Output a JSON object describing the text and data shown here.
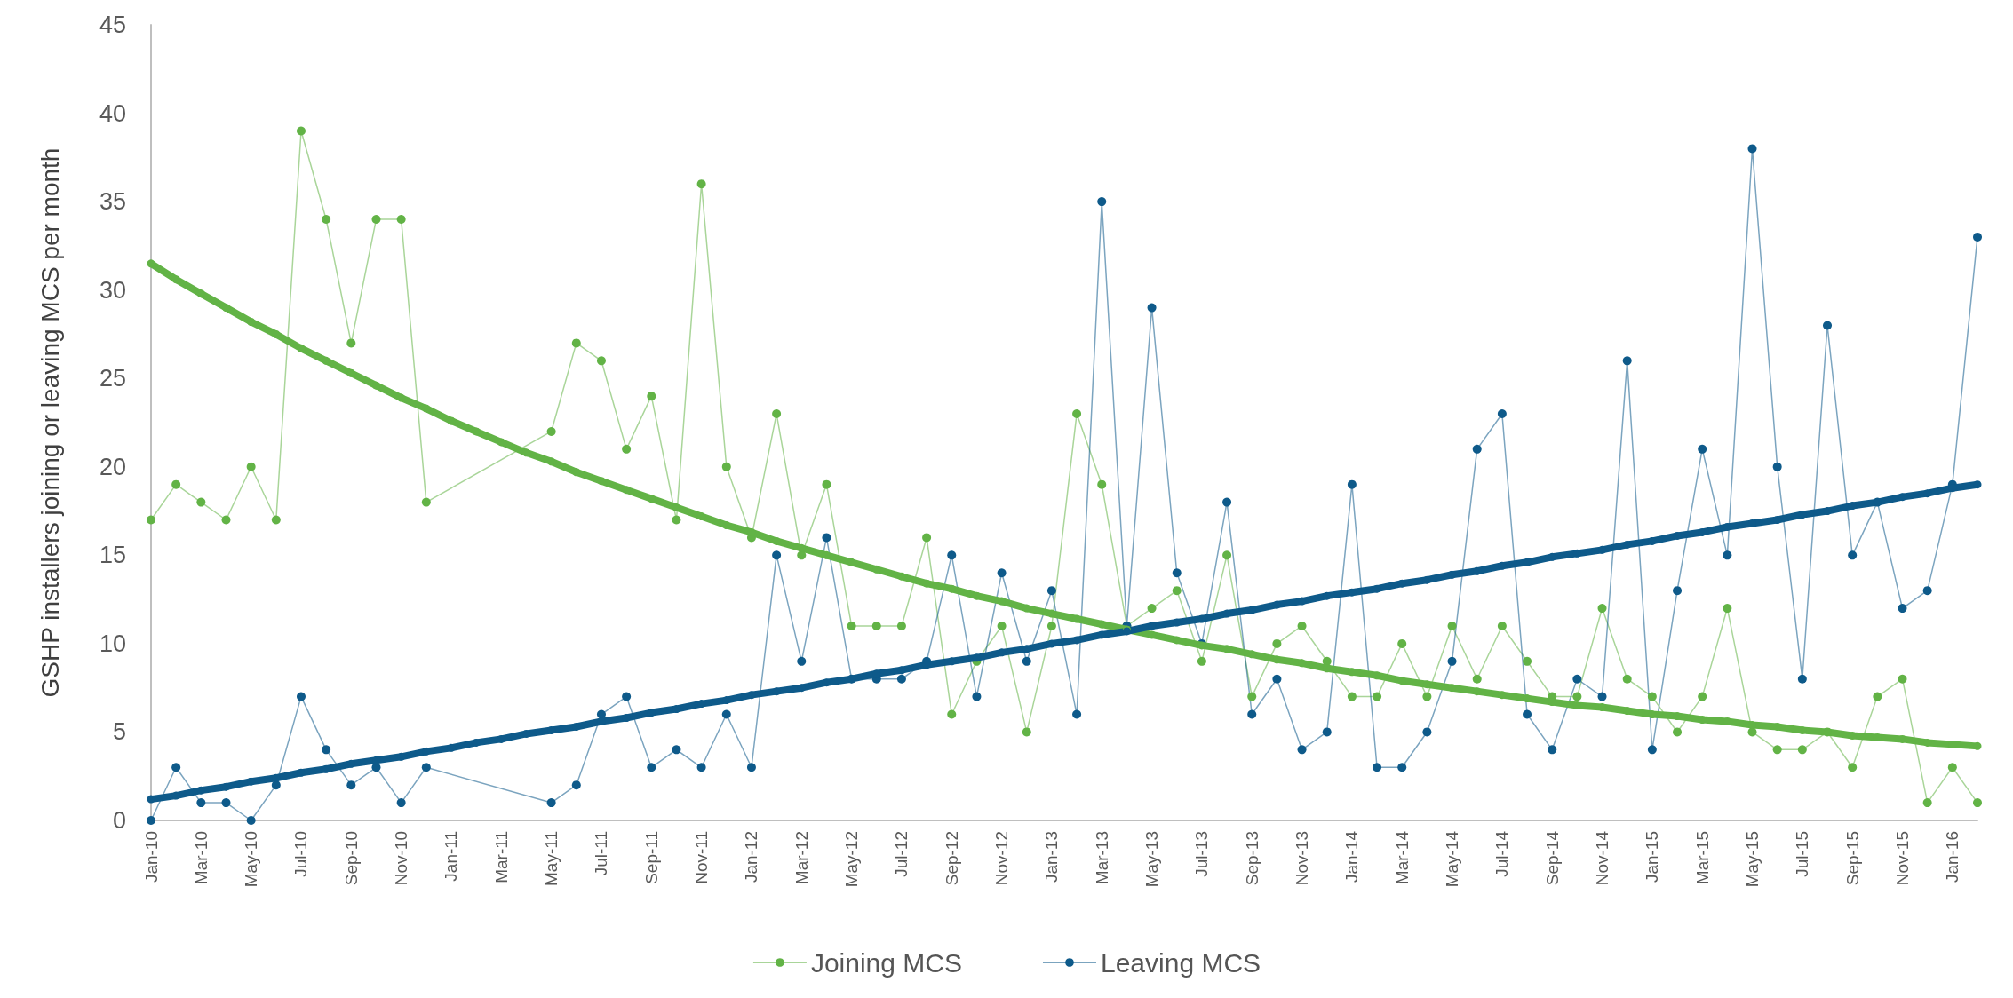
{
  "chart_data": {
    "type": "line",
    "ylabel": "GSHP installers joining or leaving MCS per month",
    "categories": [
      "Jan-10",
      null,
      "Mar-10",
      null,
      "May-10",
      null,
      "Jul-10",
      null,
      "Sep-10",
      null,
      "Nov-10",
      null,
      "Jan-11",
      null,
      "Mar-11",
      null,
      "May-11",
      null,
      "Jul-11",
      null,
      "Sep-11",
      null,
      "Nov-11",
      null,
      "Jan-12",
      null,
      "Mar-12",
      null,
      "May-12",
      null,
      "Jul-12",
      null,
      "Sep-12",
      null,
      "Nov-12",
      null,
      "Jan-13",
      null,
      "Mar-13",
      null,
      "May-13",
      null,
      "Jul-13",
      null,
      "Sep-13",
      null,
      "Nov-13",
      null,
      "Jan-14",
      null,
      "Mar-14",
      null,
      "May-14",
      null,
      "Jul-14",
      null,
      "Sep-14",
      null,
      "Nov-14",
      null,
      "Jan-15",
      null,
      "Mar-15",
      null,
      "May-15",
      null,
      "Jul-15",
      null,
      "Sep-15",
      null,
      "Nov-15",
      null,
      "Jan-16",
      null
    ],
    "series": [
      {
        "name": "Joining MCS",
        "color": "#62b346",
        "values": [
          17,
          19,
          18,
          17,
          20,
          17,
          39,
          34,
          27,
          34,
          34,
          18,
          null,
          null,
          null,
          null,
          22,
          27,
          26,
          21,
          24,
          17,
          36,
          20,
          16,
          23,
          15,
          19,
          11,
          11,
          11,
          16,
          6,
          9,
          11,
          5,
          11,
          23,
          19,
          11,
          12,
          13,
          9,
          15,
          7,
          10,
          11,
          9,
          7,
          7,
          10,
          7,
          11,
          8,
          11,
          9,
          7,
          7,
          12,
          8,
          7,
          5,
          7,
          12,
          5,
          4,
          4,
          5,
          3,
          7,
          8,
          1,
          3,
          1
        ]
      },
      {
        "name": "Leaving MCS",
        "color": "#0e5a8a",
        "values": [
          0,
          3,
          1,
          1,
          0,
          2,
          7,
          4,
          2,
          3,
          1,
          3,
          null,
          null,
          null,
          null,
          1,
          2,
          6,
          7,
          3,
          4,
          3,
          6,
          3,
          15,
          9,
          16,
          8,
          8,
          8,
          9,
          15,
          7,
          14,
          9,
          13,
          6,
          35,
          11,
          29,
          14,
          10,
          18,
          6,
          8,
          4,
          5,
          19,
          3,
          3,
          5,
          9,
          21,
          23,
          6,
          4,
          8,
          7,
          26,
          4,
          13,
          21,
          15,
          38,
          20,
          8,
          28,
          15,
          18,
          12,
          13,
          19,
          33
        ]
      },
      {
        "color": "#62b346",
        "values": [
          31.5,
          30.6,
          29.8,
          29.0,
          28.2,
          27.5,
          26.7,
          26.0,
          25.3,
          24.6,
          23.9,
          23.3,
          22.6,
          22.0,
          21.4,
          20.8,
          20.3,
          19.7,
          19.2,
          18.7,
          18.2,
          17.7,
          17.2,
          16.7,
          16.3,
          15.8,
          15.4,
          15.0,
          14.6,
          14.2,
          13.8,
          13.4,
          13.1,
          12.7,
          12.4,
          12.0,
          11.7,
          11.4,
          11.1,
          10.8,
          10.5,
          10.2,
          9.9,
          9.7,
          9.4,
          9.1,
          8.9,
          8.6,
          8.4,
          8.2,
          7.9,
          7.7,
          7.5,
          7.3,
          7.1,
          6.9,
          6.7,
          6.5,
          6.4,
          6.2,
          6.0,
          5.9,
          5.7,
          5.6,
          5.4,
          5.3,
          5.1,
          5.0,
          4.8,
          4.7,
          4.6,
          4.4,
          4.3,
          4.2
        ]
      },
      {
        "color": "#0e5a8a",
        "values": [
          1.2,
          1.4,
          1.7,
          1.9,
          2.2,
          2.4,
          2.7,
          2.9,
          3.2,
          3.4,
          3.6,
          3.9,
          4.1,
          4.4,
          4.6,
          4.9,
          5.1,
          5.3,
          5.6,
          5.8,
          6.1,
          6.3,
          6.6,
          6.8,
          7.1,
          7.3,
          7.5,
          7.8,
          8.0,
          8.3,
          8.5,
          8.8,
          9.0,
          9.2,
          9.5,
          9.7,
          10.0,
          10.2,
          10.5,
          10.7,
          11.0,
          11.2,
          11.4,
          11.7,
          11.9,
          12.2,
          12.4,
          12.7,
          12.9,
          13.1,
          13.4,
          13.6,
          13.9,
          14.1,
          14.4,
          14.6,
          14.9,
          15.1,
          15.3,
          15.6,
          15.8,
          16.1,
          16.3,
          16.6,
          16.8,
          17.0,
          17.3,
          17.5,
          17.8,
          18.0,
          18.3,
          18.5,
          18.8,
          19.0
        ]
      }
    ],
    "ylim": [
      0,
      45
    ],
    "yticks": [
      0,
      5,
      10,
      15,
      20,
      25,
      30,
      35,
      40,
      45
    ],
    "grid": false,
    "legend": "bottom",
    "marker": "circle"
  }
}
